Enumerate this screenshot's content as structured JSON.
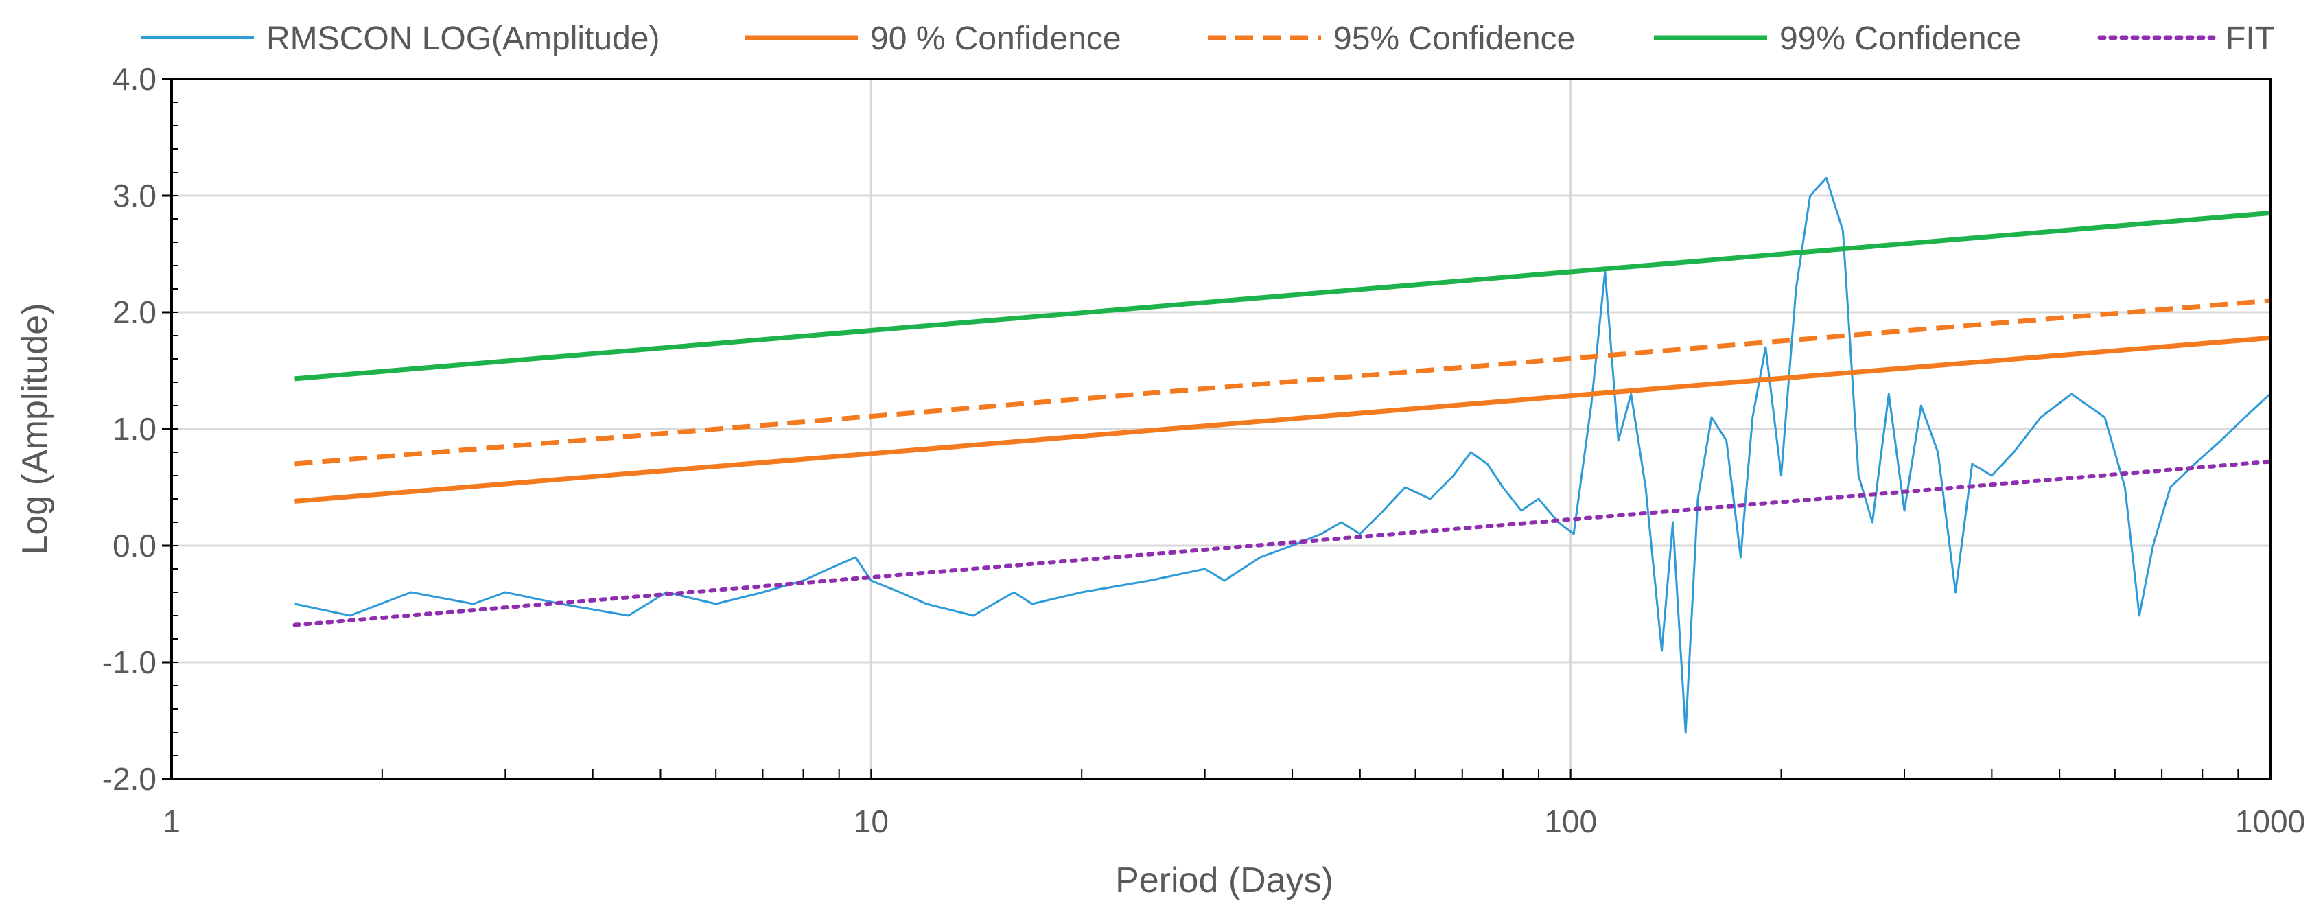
{
  "chart_data": {
    "type": "line",
    "title": "",
    "xlabel": "Period (Days)",
    "ylabel": "Log (Amplitude)",
    "x_scale": "log",
    "xlim": [
      1,
      1000
    ],
    "ylim": [
      -2.0,
      4.0
    ],
    "x_ticks": [
      1,
      10,
      100,
      1000
    ],
    "x_tick_labels": [
      "1",
      "10",
      "100",
      "1000"
    ],
    "y_ticks": [
      -2.0,
      -1.0,
      0.0,
      1.0,
      2.0,
      3.0,
      4.0
    ],
    "y_tick_labels": [
      "-2.0",
      "-1.0",
      "0.0",
      "1.0",
      "2.0",
      "3.0",
      "4.0"
    ],
    "grid": true,
    "legend_position": "top",
    "series": [
      {
        "name": "RMSCON LOG(Amplitude)",
        "color": "#2e9bd8",
        "style": "solid",
        "x": [
          1.5,
          1.8,
          2.2,
          2.7,
          3.0,
          3.6,
          4.5,
          5.1,
          6.0,
          7.0,
          8.0,
          8.7,
          9.5,
          10,
          11,
          12,
          14,
          16,
          17,
          20,
          25,
          30,
          32,
          36,
          40,
          44,
          47,
          50,
          54,
          58,
          63,
          68,
          72,
          76,
          80,
          85,
          90,
          96,
          101,
          107,
          112,
          117,
          122,
          128,
          135,
          140,
          146,
          152,
          159,
          167,
          175,
          182,
          190,
          200,
          210,
          220,
          232,
          245,
          258,
          270,
          285,
          300,
          317,
          335,
          355,
          375,
          400,
          430,
          470,
          520,
          580,
          620,
          650,
          680,
          720,
          780,
          850,
          920,
          1000
        ],
        "y": [
          -0.5,
          -0.6,
          -0.4,
          -0.5,
          -0.4,
          -0.5,
          -0.6,
          -0.4,
          -0.5,
          -0.4,
          -0.3,
          -0.2,
          -0.1,
          -0.3,
          -0.4,
          -0.5,
          -0.6,
          -0.4,
          -0.5,
          -0.4,
          -0.3,
          -0.2,
          -0.3,
          -0.1,
          0.0,
          0.1,
          0.2,
          0.1,
          0.3,
          0.5,
          0.4,
          0.6,
          0.8,
          0.7,
          0.5,
          0.3,
          0.4,
          0.2,
          0.1,
          1.2,
          2.35,
          0.9,
          1.3,
          0.5,
          -0.9,
          0.2,
          -1.6,
          0.4,
          1.1,
          0.9,
          -0.1,
          1.1,
          1.7,
          0.6,
          2.2,
          3.0,
          3.15,
          2.7,
          0.6,
          0.2,
          1.3,
          0.3,
          1.2,
          0.8,
          -0.4,
          0.7,
          0.6,
          0.8,
          1.1,
          1.3,
          1.1,
          0.5,
          -0.6,
          0.0,
          0.5,
          0.7,
          0.9,
          1.1,
          1.3
        ]
      },
      {
        "name": "90 % Confidence",
        "color": "#f47a20",
        "style": "solid",
        "x": [
          1.5,
          1000
        ],
        "y": [
          0.38,
          1.78
        ]
      },
      {
        "name": "95% Confidence",
        "color": "#f47a20",
        "style": "dashed",
        "x": [
          1.5,
          1000
        ],
        "y": [
          0.7,
          2.1
        ]
      },
      {
        "name": "99% Confidence",
        "color": "#1eb24b",
        "style": "solid",
        "x": [
          1.5,
          1000
        ],
        "y": [
          1.43,
          2.85
        ]
      },
      {
        "name": "FIT",
        "color": "#8e2fb0",
        "style": "dotted",
        "x": [
          1.5,
          1000
        ],
        "y": [
          -0.68,
          0.72
        ]
      }
    ]
  }
}
